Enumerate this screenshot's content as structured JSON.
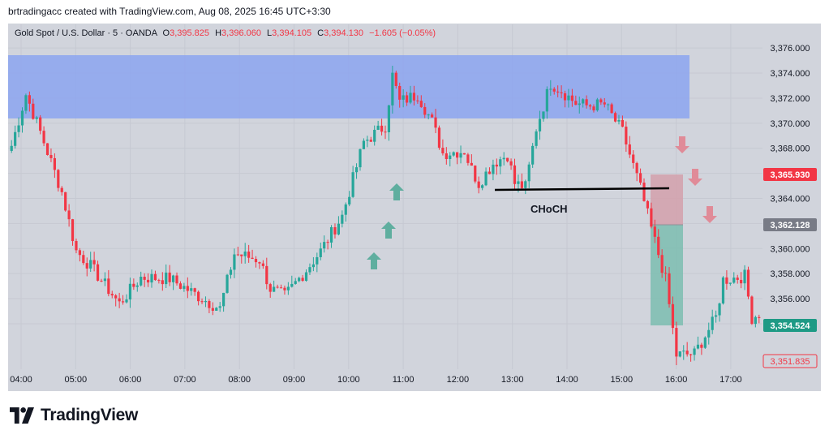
{
  "header": {
    "text": "brtradingacc created with TradingView.com, Aug 08, 2025 16:45 UTC+3:30"
  },
  "legend": {
    "symbol": "Gold Spot / U.S. Dollar · 5 · OANDA",
    "o_label": "O",
    "o": "3,395.825",
    "h_label": "H",
    "h": "3,396.060",
    "l_label": "L",
    "l": "3,394.105",
    "c_label": "C",
    "c": "3,394.130",
    "change": "−1.605 (−0.05%)"
  },
  "annotation": {
    "choch": "CHoCH"
  },
  "price_badges": {
    "red": "3,365.930",
    "gray": "3,362.128",
    "green": "3,354.524",
    "outline": "3,351.835"
  },
  "footer": {
    "brand": "TradingView"
  },
  "colors": {
    "background": "#d1d4dc",
    "up": "#26a69a",
    "down": "#f23645",
    "supply_zone": "#8ca5f0",
    "stop_zone": "#d4a0ac",
    "target_zone": "#7dbdb0",
    "arrow_up": "#5fae9f",
    "arrow_down": "#e08b98"
  },
  "chart_data": {
    "type": "candlestick",
    "title": "Gold Spot / U.S. Dollar · 5 · OANDA",
    "ylim": [
      3350.5,
      3377.5
    ],
    "y_ticks": [
      "3,376.000",
      "3,374.000",
      "3,372.000",
      "3,370.000",
      "3,368.000",
      "3,366.000",
      "3,364.000",
      "3,362.000",
      "3,360.000",
      "3,358.000",
      "3,356.000",
      "3,354.000"
    ],
    "x_ticks": [
      "04:00",
      "05:00",
      "06:00",
      "07:00",
      "08:00",
      "09:00",
      "10:00",
      "11:00",
      "12:00",
      "13:00",
      "14:00",
      "15:00",
      "16:00",
      "17:00"
    ],
    "waypoints": [
      [
        0,
        3368.2
      ],
      [
        4,
        3372.3
      ],
      [
        8,
        3369.3
      ],
      [
        14,
        3364.5
      ],
      [
        18,
        3359.8
      ],
      [
        22,
        3358.6
      ],
      [
        30,
        3355.6
      ],
      [
        36,
        3357.7
      ],
      [
        44,
        3357.6
      ],
      [
        52,
        3356.2
      ],
      [
        58,
        3355.2
      ],
      [
        62,
        3359.6
      ],
      [
        69,
        3359.1
      ],
      [
        72,
        3356.8
      ],
      [
        76,
        3356.2
      ],
      [
        82,
        3358.3
      ],
      [
        86,
        3359.8
      ],
      [
        92,
        3362.6
      ],
      [
        98,
        3368.5
      ],
      [
        104,
        3369.8
      ],
      [
        106,
        3373.8
      ],
      [
        108,
        3371.7
      ],
      [
        113,
        3372.3
      ],
      [
        117,
        3370.1
      ],
      [
        120,
        3367.6
      ],
      [
        126,
        3367.8
      ],
      [
        128,
        3366.3
      ],
      [
        130,
        3365.2
      ],
      [
        134,
        3366.8
      ],
      [
        138,
        3367.5
      ],
      [
        140,
        3365.2
      ],
      [
        143,
        3364.9
      ],
      [
        146,
        3369.6
      ],
      [
        150,
        3373.2
      ],
      [
        153,
        3372.6
      ],
      [
        157,
        3371.6
      ],
      [
        160,
        3371.4
      ],
      [
        165,
        3371.5
      ],
      [
        170,
        3369.3
      ],
      [
        175,
        3364.8
      ],
      [
        178,
        3361.6
      ],
      [
        182,
        3357.5
      ],
      [
        185,
        3351.5
      ],
      [
        190,
        3351.6
      ],
      [
        196,
        3354.5
      ],
      [
        198,
        3357.5
      ],
      [
        204,
        3357.8
      ],
      [
        206,
        3354.5
      ],
      [
        208,
        3354.8
      ]
    ]
  }
}
